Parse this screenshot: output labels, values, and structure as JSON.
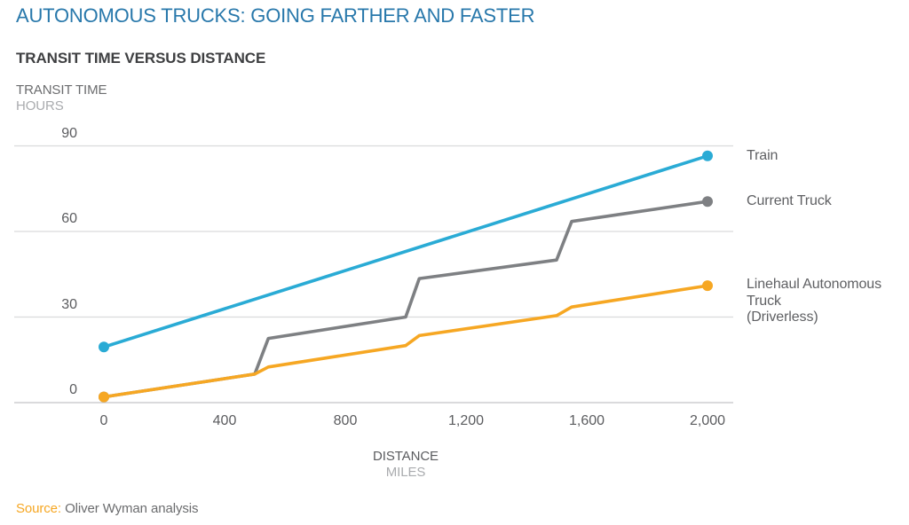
{
  "header": {
    "title": "AUTONOMOUS TRUCKS: GOING FARTHER AND FASTER"
  },
  "source": {
    "prefix": "Source:",
    "text": "Oliver Wyman analysis"
  },
  "colors": {
    "title_blue": "#2878ab",
    "train_line": "#2aabd5",
    "current_truck_line": "#7e8083",
    "autonomous_line": "#f6a723",
    "gridline": "#dadbdc",
    "axis_line": "#c3c4c6",
    "tick_text": "#5b5c5f",
    "muted_text": "#a9abae"
  },
  "legend": [
    {
      "lines": [
        "Train"
      ]
    },
    {
      "lines": [
        "Current Truck"
      ]
    },
    {
      "lines": [
        "Linehaul Autonomous",
        "Truck",
        "(Driverless)"
      ]
    }
  ],
  "chart_data": {
    "type": "line",
    "title": "TRANSIT TIME VERSUS DISTANCE",
    "xlabel": "DISTANCE",
    "xunit": "MILES",
    "ylabel": "TRANSIT TIME",
    "yunit": "HOURS",
    "xlim": [
      0,
      2000
    ],
    "ylim": [
      0,
      90
    ],
    "grid": "horizontal",
    "legend_position": "right-of-line-ends",
    "x_ticks": [
      {
        "label": "0",
        "value": 0
      },
      {
        "label": "400",
        "value": 400
      },
      {
        "label": "800",
        "value": 800
      },
      {
        "label": "1,200",
        "value": 1200
      },
      {
        "label": "1,600",
        "value": 1600
      },
      {
        "label": "2,000",
        "value": 2000
      }
    ],
    "y_ticks": [
      {
        "label": "90",
        "value": 90
      },
      {
        "label": "60",
        "value": 60
      },
      {
        "label": "30",
        "value": 30
      },
      {
        "label": "0",
        "value": 0
      }
    ],
    "series": [
      {
        "name": "Train",
        "color": "#2aabd5",
        "points": [
          [
            0,
            19.5
          ],
          [
            2000,
            86.5
          ]
        ]
      },
      {
        "name": "Current Truck",
        "color": "#7e8083",
        "points": [
          [
            0,
            2
          ],
          [
            500,
            10
          ],
          [
            545,
            22.5
          ],
          [
            1000,
            30
          ],
          [
            1045,
            43.5
          ],
          [
            1500,
            50
          ],
          [
            1550,
            63.5
          ],
          [
            2000,
            70.5
          ]
        ]
      },
      {
        "name": "Linehaul Autonomous Truck (Driverless)",
        "color": "#f6a723",
        "points": [
          [
            0,
            2
          ],
          [
            500,
            10
          ],
          [
            545,
            12.5
          ],
          [
            1000,
            20
          ],
          [
            1045,
            23.5
          ],
          [
            1500,
            30.5
          ],
          [
            1550,
            33.5
          ],
          [
            2000,
            41
          ]
        ]
      }
    ]
  }
}
